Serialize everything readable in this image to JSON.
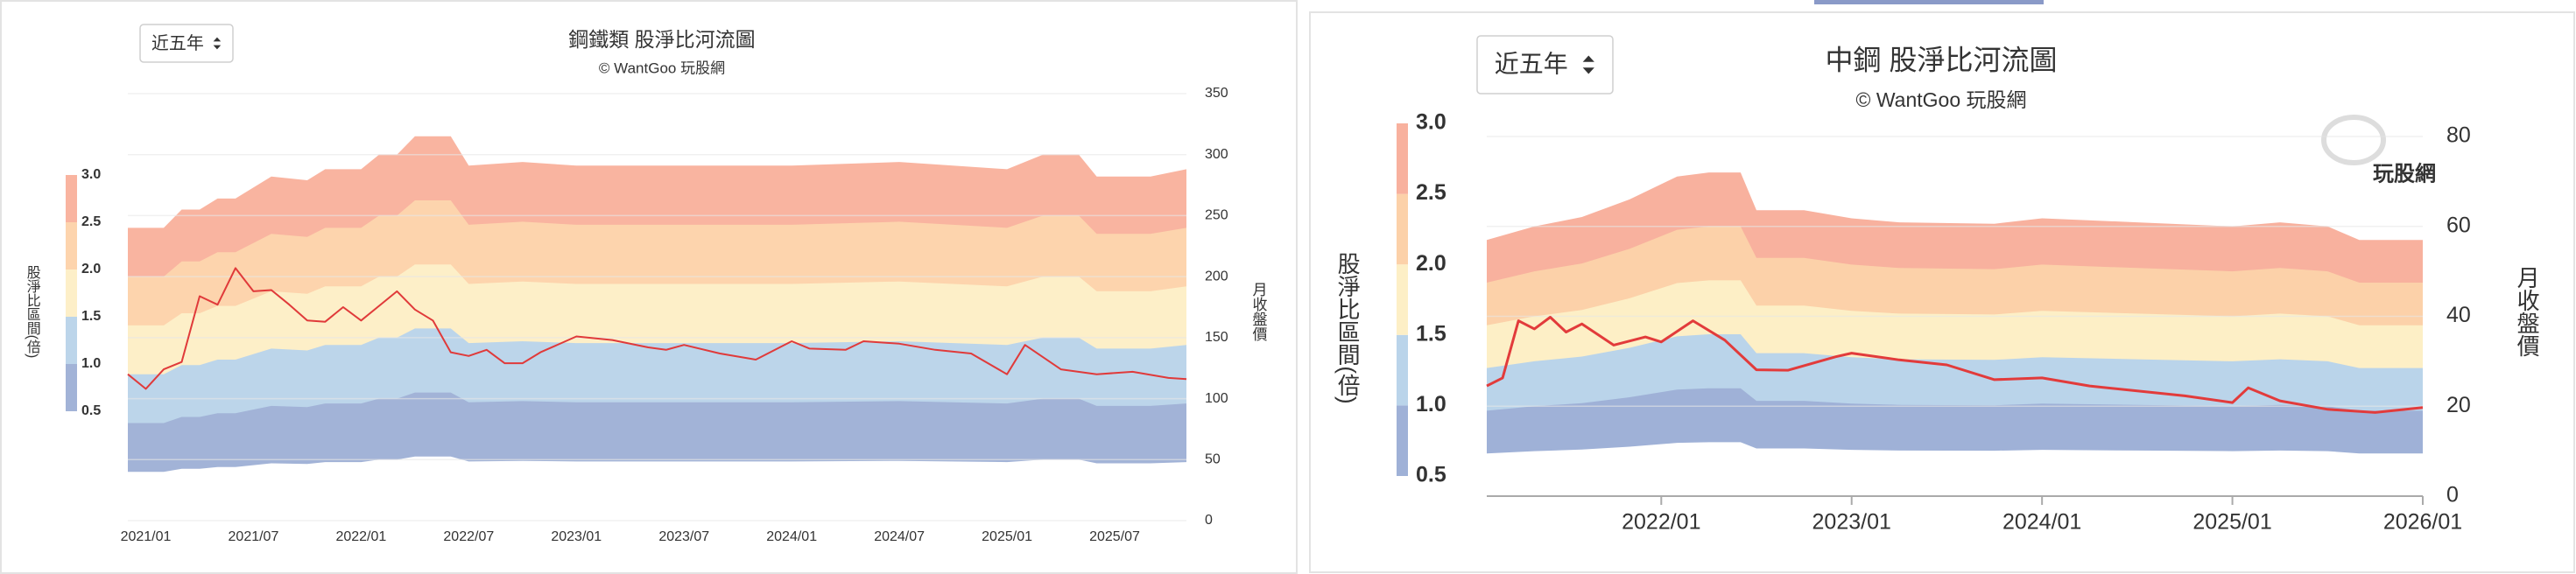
{
  "chart_data": [
    {
      "type": "river",
      "title": "鋼鐵類 股淨比河流圖",
      "subtitle": "© WantGoo 玩股網",
      "range_selector": "近五年",
      "legend_title": "股淨比區間(倍)",
      "y_label": "月收盤價",
      "xlim": [
        "2020/12",
        "2025/11"
      ],
      "xticks": [
        "2021/01",
        "2021/07",
        "2022/01",
        "2022/07",
        "2023/01",
        "2023/07",
        "2024/01",
        "2024/07",
        "2025/01",
        "2025/07"
      ],
      "ylim": [
        0,
        350
      ],
      "yticks": [
        0,
        50,
        100,
        150,
        200,
        250,
        300,
        350
      ],
      "grid": true,
      "x": [
        "2020/12",
        "2021/02",
        "2021/03",
        "2021/04",
        "2021/05",
        "2021/06",
        "2021/08",
        "2021/10",
        "2021/11",
        "2022/01",
        "2022/02",
        "2022/03",
        "2022/04",
        "2022/06",
        "2022/07",
        "2022/10",
        "2023/01",
        "2023/07",
        "2024/01",
        "2024/07",
        "2025/01",
        "2025/03",
        "2025/05",
        "2025/06",
        "2025/09",
        "2025/11"
      ],
      "bands": [
        {
          "name": "0.5",
          "color": "#4f73b0",
          "fill": "#ffffff",
          "values": [
            40,
            40,
            42.5,
            42.5,
            44,
            44,
            47,
            46.5,
            48,
            48,
            50,
            50,
            52.5,
            52.5,
            48.5,
            49,
            48.5,
            48.5,
            48.5,
            49,
            48,
            50,
            50,
            47,
            47,
            48
          ]
        },
        {
          "name": "1.0",
          "color": "#6a9fd4",
          "fill": "#a2b3d7",
          "values": [
            80,
            80,
            85,
            85,
            88,
            88,
            94,
            93,
            96,
            96,
            100,
            100,
            105,
            105,
            97,
            98,
            97,
            97,
            97,
            98,
            96,
            100,
            100,
            94,
            94,
            96
          ]
        },
        {
          "name": "1.5",
          "color": "#f0c25e",
          "fill": "#bcd5ea",
          "values": [
            120,
            120,
            127.5,
            127.5,
            132,
            132,
            141,
            139.5,
            144,
            144,
            150,
            150,
            157.5,
            157.5,
            145.5,
            147,
            145.5,
            145.5,
            145.5,
            147,
            144,
            150,
            150,
            141,
            141,
            144
          ]
        },
        {
          "name": "2.0",
          "color": "#f5a04c",
          "fill": "#fdefc8",
          "values": [
            160,
            160,
            170,
            170,
            176,
            176,
            188,
            186,
            192,
            192,
            200,
            200,
            210,
            210,
            194,
            196,
            194,
            194,
            194,
            196,
            192,
            200,
            200,
            188,
            188,
            192
          ]
        },
        {
          "name": "2.5",
          "color": "#f0744a",
          "fill": "#fdd4ad",
          "values": [
            200,
            200,
            212.5,
            212.5,
            220,
            220,
            235,
            232.5,
            240,
            240,
            250,
            250,
            262.5,
            262.5,
            242.5,
            245,
            242.5,
            242.5,
            242.5,
            245,
            240,
            250,
            250,
            235,
            235,
            240
          ]
        },
        {
          "name": "3.0",
          "color": "#e8453c",
          "fill": "#f9b4a0",
          "values": [
            240,
            240,
            255,
            255,
            264,
            264,
            282,
            279,
            288,
            288,
            300,
            300,
            315,
            315,
            291,
            294,
            291,
            291,
            291,
            294,
            288,
            300,
            300,
            282,
            282,
            288
          ]
        }
      ],
      "line": {
        "color": "#e03a3a",
        "x": [
          "2020/12",
          "2021/01",
          "2021/02",
          "2021/03",
          "2021/04",
          "2021/05",
          "2021/06",
          "2021/07",
          "2021/08",
          "2021/09",
          "2021/10",
          "2021/11",
          "2021/12",
          "2022/01",
          "2022/02",
          "2022/03",
          "2022/04",
          "2022/05",
          "2022/06",
          "2022/07",
          "2022/08",
          "2022/09",
          "2022/10",
          "2022/11",
          "2023/01",
          "2023/03",
          "2023/05",
          "2023/06",
          "2023/07",
          "2023/09",
          "2023/11",
          "2024/01",
          "2024/02",
          "2024/04",
          "2024/05",
          "2024/07",
          "2024/09",
          "2024/11",
          "2025/01",
          "2025/02",
          "2025/04",
          "2025/06",
          "2025/08",
          "2025/10",
          "2025/11"
        ],
        "values": [
          120,
          108,
          124,
          130,
          184,
          177,
          207,
          188,
          189,
          177,
          164,
          163,
          175,
          164,
          176,
          188,
          173,
          164,
          138,
          135,
          140,
          129,
          129,
          138,
          151,
          148,
          142,
          140,
          144,
          137,
          132,
          147,
          141,
          140,
          147,
          145,
          140,
          137,
          120,
          144,
          124,
          120,
          122,
          117,
          116
        ]
      }
    },
    {
      "type": "river",
      "title": "中鋼 股淨比河流圖",
      "subtitle": "© WantGoo 玩股網",
      "range_selector": "近五年",
      "watermark": "玩股網",
      "legend_title": "股淨比區間(倍)",
      "y_label": "月收盤價",
      "xlim": [
        "2021/02",
        "2026/01"
      ],
      "xticks": [
        "2022/01",
        "2023/01",
        "2024/01",
        "2025/01",
        "2026/01"
      ],
      "ylim": [
        0,
        80
      ],
      "yticks": [
        0,
        20,
        40,
        60,
        80
      ],
      "grid": true,
      "x": [
        "2021/02",
        "2021/05",
        "2021/08",
        "2021/11",
        "2022/02",
        "2022/04",
        "2022/06",
        "2022/07",
        "2022/10",
        "2023/01",
        "2023/04",
        "2023/10",
        "2024/01",
        "2024/07",
        "2025/01",
        "2025/04",
        "2025/07",
        "2025/09",
        "2026/01"
      ],
      "bands": [
        {
          "name": "0.5",
          "color": "#6583be",
          "fill": "#ffffff",
          "values": [
            9.5,
            10,
            10.35,
            11,
            11.85,
            12,
            12,
            10.6,
            10.6,
            10.3,
            10.15,
            10.1,
            10.3,
            10.15,
            10,
            10.15,
            10,
            9.5,
            9.5
          ]
        },
        {
          "name": "1.0",
          "color": "#7fb0dd",
          "fill": "#9fb1d7",
          "values": [
            19,
            20,
            20.7,
            22,
            23.7,
            24,
            24,
            21.2,
            21.2,
            20.6,
            20.3,
            20.2,
            20.6,
            20.3,
            20,
            20.3,
            20,
            19,
            19
          ]
        },
        {
          "name": "1.5",
          "color": "#f3bd62",
          "fill": "#bad4ea",
          "values": [
            28.5,
            30,
            31.05,
            33,
            35.55,
            36,
            36,
            31.8,
            31.8,
            30.9,
            30.45,
            30.3,
            30.9,
            30.45,
            30,
            30.45,
            30,
            28.5,
            28.5
          ]
        },
        {
          "name": "2.0",
          "color": "#f6a15c",
          "fill": "#fdefc6",
          "values": [
            38,
            40,
            41.4,
            44,
            47.4,
            48,
            48,
            42.4,
            42.4,
            41.2,
            40.6,
            40.4,
            41.2,
            40.6,
            40,
            40.6,
            40,
            38,
            38
          ]
        },
        {
          "name": "2.5",
          "color": "#f4845a",
          "fill": "#fcd1a9",
          "values": [
            47.5,
            50,
            51.75,
            55,
            59.25,
            60,
            60,
            53,
            53,
            51.5,
            50.75,
            50.5,
            51.5,
            50.75,
            50,
            50.75,
            50,
            47.5,
            47.5
          ]
        },
        {
          "name": "3.0",
          "color": "#f06a4f",
          "fill": "#f8b19e",
          "values": [
            57,
            60,
            62.1,
            66,
            71.1,
            72,
            72,
            63.6,
            63.6,
            61.8,
            60.9,
            60.6,
            61.8,
            60.9,
            60,
            60.9,
            60,
            57,
            57
          ]
        }
      ],
      "line": {
        "color": "#e23b3b",
        "x": [
          "2021/02",
          "2021/03",
          "2021/04",
          "2021/05",
          "2021/06",
          "2021/07",
          "2021/08",
          "2021/10",
          "2021/12",
          "2022/01",
          "2022/03",
          "2022/05",
          "2022/07",
          "2022/09",
          "2022/12",
          "2023/01",
          "2023/04",
          "2023/07",
          "2023/10",
          "2024/01",
          "2024/04",
          "2024/07",
          "2024/10",
          "2025/01",
          "2025/02",
          "2025/04",
          "2025/07",
          "2025/10",
          "2026/01"
        ],
        "values": [
          24.5,
          26.3,
          39,
          37.2,
          39.8,
          36.5,
          38.3,
          33.6,
          35.4,
          34.3,
          39,
          34.7,
          28.1,
          28,
          31,
          31.8,
          30.3,
          29.2,
          25.9,
          26.3,
          24.5,
          23.4,
          22.3,
          20.8,
          24.1,
          21.2,
          19.3,
          18.6,
          19.7
        ]
      }
    }
  ]
}
